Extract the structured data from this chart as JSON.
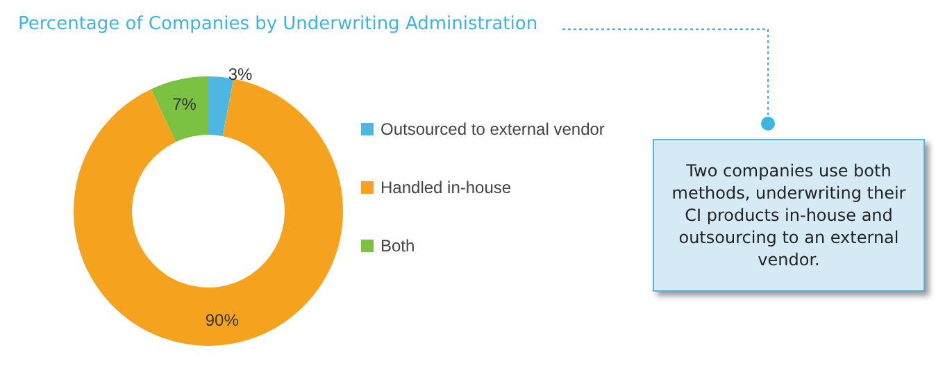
{
  "chart_data": {
    "type": "donut",
    "title": "Percentage of Companies by Underwriting Administration",
    "categories": [
      "Outsourced to external vendor",
      "Handled in-house",
      "Both"
    ],
    "values": [
      3,
      90,
      7
    ],
    "colors": [
      "#4db6e2",
      "#f5a31f",
      "#7cc242"
    ],
    "value_labels": [
      "3%",
      "90%",
      "7%"
    ],
    "legend": "right",
    "annotations": [
      "Two companies use both methods, underwriting their CI products in-house and outsourcing to an external vendor."
    ]
  }
}
